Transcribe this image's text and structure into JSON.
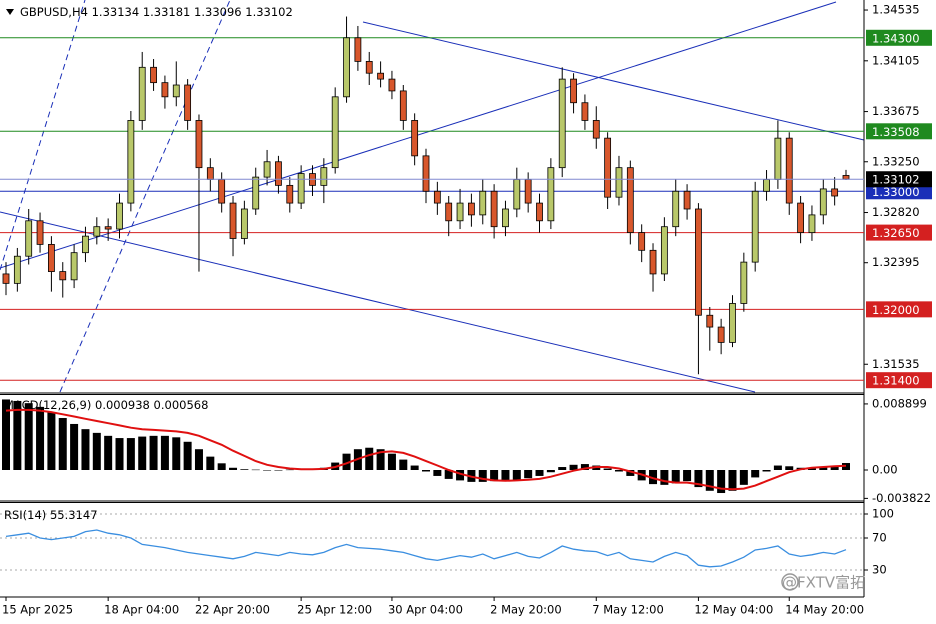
{
  "chart_data": [
    {
      "type": "candlestick",
      "title": "GBPUSD,H4",
      "categories": [
        "15 Apr 2025",
        null,
        null,
        null,
        null,
        null,
        null,
        null,
        null,
        "18 Apr 04:00",
        null,
        null,
        null,
        null,
        null,
        null,
        null,
        "22 Apr 20:00",
        null,
        null,
        null,
        null,
        null,
        null,
        null,
        null,
        "25 Apr 12:00",
        null,
        null,
        null,
        null,
        null,
        null,
        null,
        "30 Apr 04:00",
        null,
        null,
        null,
        null,
        null,
        null,
        null,
        null,
        "2 May 20:00",
        null,
        null,
        null,
        null,
        null,
        null,
        null,
        null,
        "7 May 12:00",
        null,
        null,
        null,
        null,
        null,
        null,
        null,
        null,
        "12 May 04:00",
        null,
        null,
        null,
        null,
        null,
        null,
        null,
        "14 May 20:00",
        null,
        null,
        null,
        null,
        null
      ],
      "open": [
        1.323,
        1.3222,
        1.3245,
        1.3275,
        1.3255,
        1.3232,
        1.3225,
        1.3248,
        1.3262,
        1.327,
        1.3268,
        1.329,
        1.336,
        1.3405,
        1.3392,
        1.338,
        1.339,
        1.336,
        1.332,
        1.331,
        1.329,
        1.326,
        1.3285,
        1.3312,
        1.3325,
        1.3305,
        1.329,
        1.3315,
        1.3305,
        1.332,
        1.338,
        1.343,
        1.341,
        1.34,
        1.3395,
        1.3385,
        1.336,
        1.333,
        1.33,
        1.329,
        1.3275,
        1.329,
        1.328,
        1.33,
        1.327,
        1.3285,
        1.331,
        1.329,
        1.3275,
        1.332,
        1.3395,
        1.3375,
        1.336,
        1.3345,
        1.3295,
        1.332,
        1.3265,
        1.325,
        1.323,
        1.327,
        1.33,
        1.3285,
        1.3195,
        1.3185,
        1.3172,
        1.3205,
        1.324,
        1.33,
        1.331,
        1.3345,
        1.329,
        1.3265,
        1.328,
        1.3302,
        1.33134
      ],
      "high": [
        1.324,
        1.3252,
        1.3285,
        1.3282,
        1.3262,
        1.324,
        1.3255,
        1.327,
        1.3278,
        1.3277,
        1.3298,
        1.3368,
        1.3418,
        1.3412,
        1.3398,
        1.341,
        1.3395,
        1.3365,
        1.3328,
        1.3316,
        1.3296,
        1.3292,
        1.332,
        1.3335,
        1.333,
        1.3312,
        1.3322,
        1.3322,
        1.3328,
        1.3388,
        1.3448,
        1.344,
        1.3418,
        1.341,
        1.3402,
        1.339,
        1.3366,
        1.3336,
        1.3308,
        1.3296,
        1.3302,
        1.3298,
        1.331,
        1.3306,
        1.3292,
        1.332,
        1.3316,
        1.3298,
        1.3328,
        1.3405,
        1.34,
        1.3382,
        1.3372,
        1.335,
        1.333,
        1.3326,
        1.3272,
        1.3256,
        1.3278,
        1.331,
        1.3306,
        1.329,
        1.3202,
        1.3192,
        1.3212,
        1.3248,
        1.3308,
        1.3318,
        1.336,
        1.335,
        1.3296,
        1.3288,
        1.331,
        1.3312,
        1.33181
      ],
      "low": [
        1.3212,
        1.3215,
        1.3238,
        1.3248,
        1.3215,
        1.321,
        1.3218,
        1.324,
        1.3255,
        1.3258,
        1.326,
        1.3283,
        1.3352,
        1.3385,
        1.337,
        1.3372,
        1.3352,
        1.3232,
        1.33,
        1.3282,
        1.3245,
        1.3255,
        1.328,
        1.3305,
        1.3298,
        1.3282,
        1.3285,
        1.3296,
        1.329,
        1.3315,
        1.3375,
        1.3402,
        1.339,
        1.3388,
        1.3378,
        1.3352,
        1.3322,
        1.329,
        1.328,
        1.3262,
        1.3268,
        1.327,
        1.3272,
        1.326,
        1.3262,
        1.3278,
        1.3282,
        1.3265,
        1.3268,
        1.3312,
        1.3366,
        1.3352,
        1.3336,
        1.3285,
        1.3288,
        1.3255,
        1.324,
        1.3215,
        1.3224,
        1.3262,
        1.3276,
        1.3145,
        1.3165,
        1.3162,
        1.3168,
        1.3198,
        1.3232,
        1.3292,
        1.3302,
        1.328,
        1.3256,
        1.3258,
        1.3272,
        1.3288,
        1.33096
      ],
      "close": [
        1.3222,
        1.3245,
        1.3275,
        1.3255,
        1.3232,
        1.3225,
        1.3248,
        1.3262,
        1.327,
        1.3268,
        1.329,
        1.336,
        1.3405,
        1.3392,
        1.338,
        1.339,
        1.336,
        1.332,
        1.331,
        1.329,
        1.326,
        1.3285,
        1.3312,
        1.3325,
        1.3305,
        1.329,
        1.3315,
        1.3305,
        1.332,
        1.338,
        1.343,
        1.341,
        1.34,
        1.3395,
        1.3385,
        1.336,
        1.333,
        1.33,
        1.329,
        1.3275,
        1.329,
        1.328,
        1.33,
        1.327,
        1.3285,
        1.331,
        1.329,
        1.3275,
        1.332,
        1.3395,
        1.3375,
        1.336,
        1.3345,
        1.3295,
        1.332,
        1.3265,
        1.325,
        1.323,
        1.327,
        1.33,
        1.3285,
        1.3195,
        1.3185,
        1.3172,
        1.3205,
        1.324,
        1.33,
        1.331,
        1.3345,
        1.329,
        1.3265,
        1.328,
        1.3302,
        1.3296,
        1.33102
      ],
      "up_color": "#b9c86a",
      "down_color": "#d8572c",
      "last_price_color": "#000000",
      "ylim": [
        1.313,
        1.3462
      ],
      "yticks": [
        {
          "value": 1.34535,
          "label": "1.34535"
        },
        {
          "value": 1.34105,
          "label": "1.34105"
        },
        {
          "value": 1.33675,
          "label": "1.33675"
        },
        {
          "value": 1.3325,
          "label": "1.33250"
        },
        {
          "value": 1.3282,
          "label": "1.32820"
        },
        {
          "value": 1.32395,
          "label": "1.32395"
        },
        {
          "value": 1.31535,
          "label": "1.31535"
        }
      ],
      "levels": [
        {
          "value": 1.343,
          "label": "1.34300",
          "color": "#1f8a1f"
        },
        {
          "value": 1.33508,
          "label": "1.33508",
          "color": "#1f8a1f"
        },
        {
          "value": 1.33,
          "label": "1.33000",
          "color": "#1a2fb8"
        },
        {
          "value": 1.3265,
          "label": "1.32650",
          "color": "#d42020"
        },
        {
          "value": 1.32,
          "label": "1.32000",
          "color": "#d42020"
        },
        {
          "value": 1.314,
          "label": "1.31400",
          "color": "#d42020"
        }
      ],
      "watermark": "@FXTV富拓"
    },
    {
      "type": "macd",
      "title": "MACD(12,26,9)",
      "histogram": [
        0.0095,
        0.0093,
        0.009,
        0.0085,
        0.0078,
        0.007,
        0.0062,
        0.0055,
        0.005,
        0.0046,
        0.0043,
        0.0043,
        0.0045,
        0.0046,
        0.0046,
        0.0044,
        0.0038,
        0.0028,
        0.0018,
        0.0009,
        0.0003,
        0.0001,
        5e-05,
        0.0,
        0.0,
        5e-05,
        0.0001,
        0.0001,
        0.0003,
        0.001,
        0.0022,
        0.0028,
        0.003,
        0.0028,
        0.0022,
        0.0014,
        0.0006,
        -0.0002,
        -0.0008,
        -0.0012,
        -0.0014,
        -0.0016,
        -0.0016,
        -0.0015,
        -0.0014,
        -0.0013,
        -0.0011,
        -0.0008,
        -0.0003,
        0.0004,
        0.0007,
        0.0008,
        0.0006,
        0.0002,
        -0.0002,
        -0.0008,
        -0.0014,
        -0.0019,
        -0.002,
        -0.0018,
        -0.0015,
        -0.0023,
        -0.0028,
        -0.0031,
        -0.0028,
        -0.002,
        -0.001,
        -0.0002,
        0.0006,
        0.0005,
        0.0003,
        0.0002,
        0.0004,
        0.0006,
        0.000938
      ],
      "signal": [
        0.008,
        0.0081,
        0.0081,
        0.008,
        0.0078,
        0.0075,
        0.0072,
        0.0069,
        0.0066,
        0.0063,
        0.006,
        0.0057,
        0.0055,
        0.0054,
        0.0053,
        0.0052,
        0.005,
        0.0046,
        0.004,
        0.0034,
        0.0026,
        0.0019,
        0.0012,
        0.0007,
        0.0004,
        0.0002,
        0.0001,
        0.0001,
        0.00015,
        0.0004,
        0.0009,
        0.0015,
        0.002,
        0.0024,
        0.0025,
        0.0023,
        0.0018,
        0.0012,
        0.0006,
        0.0,
        -0.0005,
        -0.0009,
        -0.0012,
        -0.0014,
        -0.00145,
        -0.0014,
        -0.0013,
        -0.0012,
        -0.0009,
        -0.0005,
        -0.0001,
        0.0002,
        0.0004,
        0.0004,
        0.0002,
        -0.0002,
        -0.0006,
        -0.0011,
        -0.0015,
        -0.0017,
        -0.0017,
        -0.0019,
        -0.0022,
        -0.0025,
        -0.0026,
        -0.0025,
        -0.0021,
        -0.0015,
        -0.0009,
        -0.0003,
        0.0001,
        0.0003,
        0.0004,
        0.0005,
        0.000568
      ],
      "histogram_color": "#000000",
      "signal_color": "#e01010",
      "ylim": [
        -0.00404,
        0.0101
      ],
      "yticks": [
        0.008899,
        {
          "value": 0,
          "label": "0.00"
        },
        -0.003822
      ]
    },
    {
      "type": "line",
      "title": "RSI(14)",
      "values": [
        72,
        74,
        76,
        70,
        68,
        70,
        72,
        78,
        80,
        76,
        74,
        70,
        62,
        60,
        58,
        55,
        52,
        50,
        48,
        46,
        44,
        47,
        52,
        50,
        48,
        52,
        50,
        49,
        52,
        58,
        62,
        58,
        57,
        56,
        54,
        52,
        48,
        44,
        42,
        45,
        48,
        46,
        50,
        44,
        48,
        52,
        47,
        45,
        52,
        60,
        56,
        54,
        53,
        48,
        52,
        44,
        42,
        40,
        47,
        52,
        48,
        36,
        34,
        35,
        40,
        46,
        55,
        57,
        60,
        50,
        47,
        49,
        52,
        50,
        55.3147
      ],
      "color": "#3a8ee0",
      "ylim": [
        -2.5,
        113.75
      ],
      "yticks": [
        100,
        70,
        30
      ]
    }
  ]
}
